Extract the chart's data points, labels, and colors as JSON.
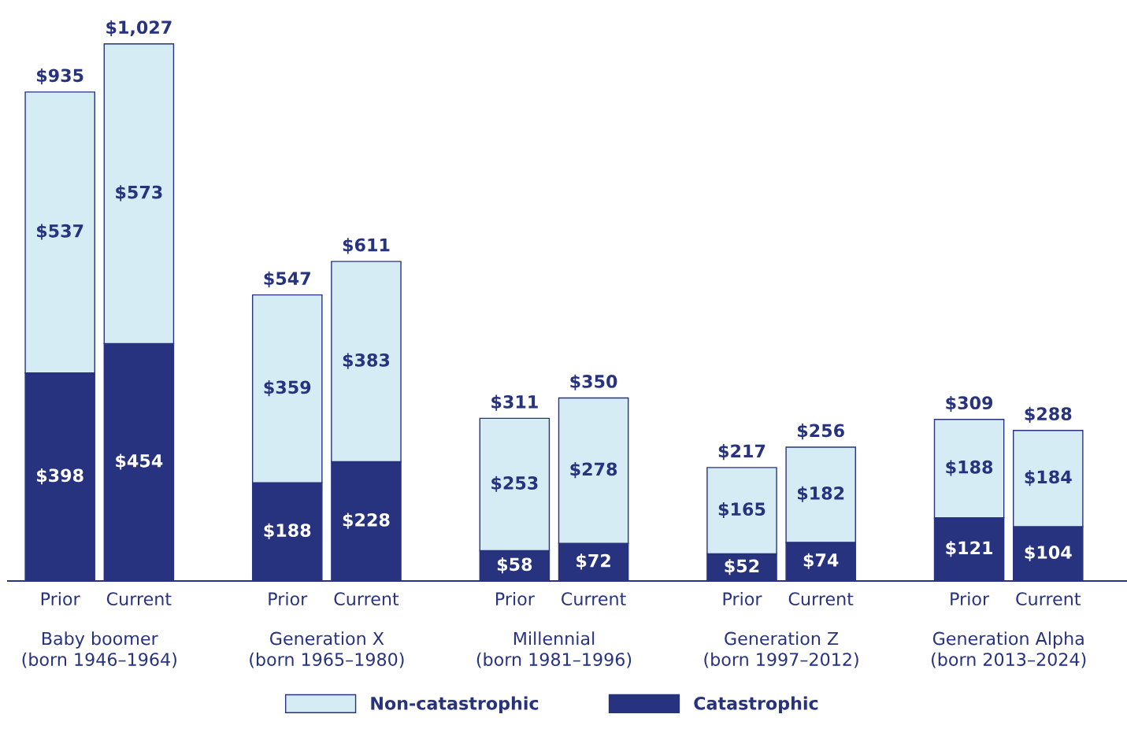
{
  "chart_data": {
    "type": "bar",
    "stacked": true,
    "categories": [
      "Prior",
      "Current",
      "Prior",
      "Current",
      "Prior",
      "Current",
      "Prior",
      "Current",
      "Prior",
      "Current"
    ],
    "series": [
      {
        "name": "Catastrophic",
        "color": "#27337f",
        "values": [
          398,
          454,
          188,
          228,
          58,
          72,
          52,
          74,
          121,
          104
        ],
        "value_labels": [
          "$398",
          "$454",
          "$188",
          "$228",
          "$58",
          "$72",
          "$52",
          "$74",
          "$121",
          "$104"
        ]
      },
      {
        "name": "Non-catastrophic",
        "color": "#d5ecf4",
        "values": [
          537,
          573,
          359,
          383,
          253,
          278,
          165,
          182,
          188,
          184
        ],
        "value_labels": [
          "$537",
          "$573",
          "$359",
          "$383",
          "$253",
          "$278",
          "$165",
          "$182",
          "$188",
          "$184"
        ]
      }
    ],
    "totals": [
      "$935",
      "$1,027",
      "$547",
      "$611",
      "$311",
      "$350",
      "$217",
      "$256",
      "$309",
      "$288"
    ],
    "annotations": [
      "Baby boomer\n(born 1946–1964)",
      "Generation X\n(born 1965–1980)",
      "Millennial\n(born 1981–1996)",
      "Generation Z\n(born 1997–2012)",
      "Generation Alpha\n(born 2013–2024)"
    ],
    "legend": "bottom",
    "grid": false
  }
}
